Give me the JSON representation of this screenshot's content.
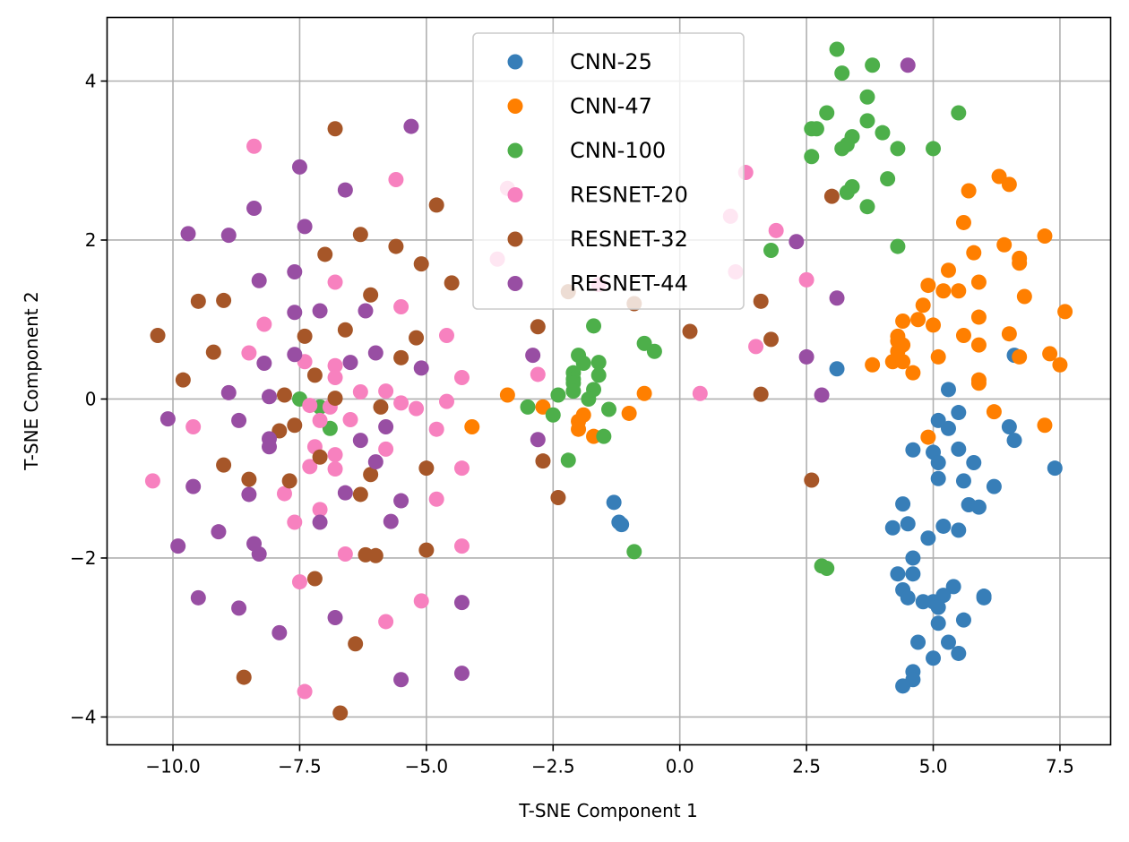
{
  "chart_data": {
    "type": "scatter",
    "xlabel": "T-SNE Component 1",
    "ylabel": "T-SNE Component 2",
    "xlim": [
      -11.3,
      8.5
    ],
    "ylim": [
      -4.35,
      4.8
    ],
    "x_ticks": [
      -10.0,
      -7.5,
      -5.0,
      -2.5,
      0.0,
      2.5,
      5.0,
      7.5
    ],
    "x_tick_labels": [
      "−10.0",
      "−7.5",
      "−5.0",
      "−2.5",
      "0.0",
      "2.5",
      "5.0",
      "7.5"
    ],
    "y_ticks": [
      -4,
      -2,
      0,
      2,
      4
    ],
    "y_tick_labels": [
      "−4",
      "−2",
      "0",
      "2",
      "4"
    ],
    "grid": true,
    "legend_position": "upper-center",
    "series": [
      {
        "name": "CNN-25",
        "color": "#377eb8",
        "points": [
          [
            6.6,
            0.55
          ],
          [
            3.1,
            0.38
          ],
          [
            5.3,
            0.12
          ],
          [
            5.5,
            -0.17
          ],
          [
            5.1,
            -0.27
          ],
          [
            5.3,
            -0.37
          ],
          [
            6.5,
            -0.35
          ],
          [
            6.6,
            -0.52
          ],
          [
            5.0,
            -0.67
          ],
          [
            5.5,
            -0.63
          ],
          [
            4.6,
            -0.64
          ],
          [
            5.1,
            -0.8
          ],
          [
            5.8,
            -0.8
          ],
          [
            7.4,
            -0.87
          ],
          [
            5.1,
            -1.0
          ],
          [
            5.6,
            -1.03
          ],
          [
            6.2,
            -1.1
          ],
          [
            5.7,
            -1.33
          ],
          [
            5.9,
            -1.36
          ],
          [
            4.4,
            -1.32
          ],
          [
            -1.3,
            -1.3
          ],
          [
            -1.2,
            -1.55
          ],
          [
            -1.15,
            -1.58
          ],
          [
            4.5,
            -1.57
          ],
          [
            4.2,
            -1.62
          ],
          [
            5.2,
            -1.6
          ],
          [
            5.5,
            -1.65
          ],
          [
            4.9,
            -1.75
          ],
          [
            4.6,
            -2.0
          ],
          [
            4.3,
            -2.2
          ],
          [
            4.6,
            -2.2
          ],
          [
            5.4,
            -2.36
          ],
          [
            4.4,
            -2.4
          ],
          [
            5.2,
            -2.47
          ],
          [
            6.0,
            -2.48
          ],
          [
            6.0,
            -2.5
          ],
          [
            4.5,
            -2.5
          ],
          [
            4.8,
            -2.55
          ],
          [
            5.0,
            -2.55
          ],
          [
            5.1,
            -2.62
          ],
          [
            5.1,
            -2.82
          ],
          [
            5.6,
            -2.78
          ],
          [
            4.7,
            -3.06
          ],
          [
            5.3,
            -3.06
          ],
          [
            5.0,
            -3.26
          ],
          [
            5.5,
            -3.2
          ],
          [
            4.6,
            -3.43
          ],
          [
            4.6,
            -3.53
          ],
          [
            4.4,
            -3.61
          ]
        ]
      },
      {
        "name": "CNN-47",
        "color": "#ff7f00",
        "points": [
          [
            6.3,
            2.8
          ],
          [
            6.5,
            2.7
          ],
          [
            5.7,
            2.62
          ],
          [
            5.6,
            2.22
          ],
          [
            7.2,
            2.05
          ],
          [
            6.4,
            1.94
          ],
          [
            5.8,
            1.84
          ],
          [
            6.7,
            1.77
          ],
          [
            6.7,
            1.71
          ],
          [
            5.3,
            1.62
          ],
          [
            5.9,
            1.47
          ],
          [
            4.9,
            1.43
          ],
          [
            5.2,
            1.36
          ],
          [
            5.5,
            1.36
          ],
          [
            6.8,
            1.29
          ],
          [
            4.8,
            1.18
          ],
          [
            7.6,
            1.1
          ],
          [
            5.9,
            1.03
          ],
          [
            4.7,
            1.0
          ],
          [
            4.4,
            0.98
          ],
          [
            5.0,
            0.93
          ],
          [
            6.5,
            0.82
          ],
          [
            5.6,
            0.8
          ],
          [
            4.3,
            0.79
          ],
          [
            4.3,
            0.73
          ],
          [
            5.9,
            0.68
          ],
          [
            4.4,
            0.68
          ],
          [
            4.3,
            0.6
          ],
          [
            6.7,
            0.53
          ],
          [
            5.1,
            0.53
          ],
          [
            4.2,
            0.47
          ],
          [
            4.4,
            0.47
          ],
          [
            3.8,
            0.43
          ],
          [
            7.3,
            0.57
          ],
          [
            7.5,
            0.43
          ],
          [
            4.6,
            0.33
          ],
          [
            5.9,
            0.24
          ],
          [
            5.9,
            0.2
          ],
          [
            -0.7,
            0.07
          ],
          [
            -3.4,
            0.05
          ],
          [
            -2.7,
            -0.1
          ],
          [
            -1.0,
            -0.18
          ],
          [
            -1.9,
            -0.2
          ],
          [
            -2.0,
            -0.28
          ],
          [
            -2.0,
            -0.38
          ],
          [
            -1.7,
            -0.47
          ],
          [
            6.2,
            -0.16
          ],
          [
            7.2,
            -0.33
          ],
          [
            4.9,
            -0.48
          ],
          [
            -4.1,
            -0.35
          ]
        ]
      },
      {
        "name": "CNN-100",
        "color": "#4daf4a",
        "points": [
          [
            3.1,
            4.4
          ],
          [
            3.2,
            4.1
          ],
          [
            3.8,
            4.2
          ],
          [
            3.7,
            3.8
          ],
          [
            2.9,
            3.6
          ],
          [
            5.5,
            3.6
          ],
          [
            3.7,
            3.5
          ],
          [
            2.6,
            3.4
          ],
          [
            2.7,
            3.4
          ],
          [
            4.0,
            3.35
          ],
          [
            3.4,
            3.3
          ],
          [
            3.3,
            3.2
          ],
          [
            3.2,
            3.15
          ],
          [
            4.3,
            3.15
          ],
          [
            5.0,
            3.15
          ],
          [
            2.6,
            3.05
          ],
          [
            3.4,
            2.67
          ],
          [
            3.3,
            2.6
          ],
          [
            4.1,
            2.77
          ],
          [
            3.7,
            2.42
          ],
          [
            4.3,
            1.92
          ],
          [
            1.8,
            1.87
          ],
          [
            -1.7,
            0.92
          ],
          [
            -0.7,
            0.7
          ],
          [
            -0.5,
            0.6
          ],
          [
            -2.0,
            0.55
          ],
          [
            -1.6,
            0.46
          ],
          [
            -1.9,
            0.45
          ],
          [
            -2.1,
            0.33
          ],
          [
            -1.6,
            0.3
          ],
          [
            -2.1,
            0.25
          ],
          [
            -2.1,
            0.2
          ],
          [
            -1.7,
            0.12
          ],
          [
            -2.1,
            0.1
          ],
          [
            -2.4,
            0.05
          ],
          [
            -1.8,
            0.0
          ],
          [
            -3.0,
            -0.1
          ],
          [
            -1.4,
            -0.13
          ],
          [
            -2.5,
            -0.2
          ],
          [
            -7.5,
            0.0
          ],
          [
            -7.1,
            -0.1
          ],
          [
            -6.9,
            -0.37
          ],
          [
            -1.5,
            -0.47
          ],
          [
            -2.2,
            -0.77
          ],
          [
            -0.9,
            -1.92
          ],
          [
            2.8,
            -2.1
          ],
          [
            2.9,
            -2.13
          ]
        ]
      },
      {
        "name": "RESNET-20",
        "color": "#f781bf",
        "points": [
          [
            -8.4,
            3.18
          ],
          [
            -5.6,
            2.76
          ],
          [
            1.3,
            2.85
          ],
          [
            -3.4,
            2.65
          ],
          [
            1.0,
            2.3
          ],
          [
            1.9,
            2.12
          ],
          [
            -3.6,
            1.76
          ],
          [
            1.1,
            1.6
          ],
          [
            -6.8,
            1.47
          ],
          [
            -1.6,
            1.44
          ],
          [
            2.5,
            1.5
          ],
          [
            -5.5,
            1.16
          ],
          [
            -8.2,
            0.94
          ],
          [
            -4.6,
            0.8
          ],
          [
            -8.5,
            0.58
          ],
          [
            1.5,
            0.66
          ],
          [
            -7.4,
            0.47
          ],
          [
            -6.8,
            0.42
          ],
          [
            -2.8,
            0.31
          ],
          [
            -6.8,
            0.27
          ],
          [
            -4.3,
            0.27
          ],
          [
            -6.3,
            0.09
          ],
          [
            -5.8,
            0.1
          ],
          [
            0.4,
            0.07
          ],
          [
            -4.6,
            -0.03
          ],
          [
            -5.5,
            -0.05
          ],
          [
            -7.3,
            -0.08
          ],
          [
            -6.9,
            -0.1
          ],
          [
            -5.2,
            -0.12
          ],
          [
            -6.5,
            -0.26
          ],
          [
            -7.1,
            -0.27
          ],
          [
            -9.6,
            -0.35
          ],
          [
            -4.8,
            -0.38
          ],
          [
            -7.2,
            -0.6
          ],
          [
            -5.8,
            -0.63
          ],
          [
            -6.8,
            -0.7
          ],
          [
            -7.3,
            -0.85
          ],
          [
            -6.8,
            -0.88
          ],
          [
            -4.3,
            -0.87
          ],
          [
            -10.4,
            -1.03
          ],
          [
            -7.8,
            -1.19
          ],
          [
            -4.8,
            -1.26
          ],
          [
            -7.1,
            -1.39
          ],
          [
            -7.6,
            -1.55
          ],
          [
            -4.3,
            -1.85
          ],
          [
            -6.6,
            -1.95
          ],
          [
            -7.5,
            -2.3
          ],
          [
            -5.1,
            -2.54
          ],
          [
            -5.8,
            -2.8
          ],
          [
            -7.4,
            -3.68
          ]
        ]
      },
      {
        "name": "RESNET-32",
        "color": "#a65628",
        "points": [
          [
            -6.8,
            3.4
          ],
          [
            -4.8,
            2.44
          ],
          [
            -6.3,
            2.07
          ],
          [
            -5.6,
            1.92
          ],
          [
            -7.0,
            1.82
          ],
          [
            3.0,
            2.55
          ],
          [
            -5.1,
            1.7
          ],
          [
            -4.5,
            1.46
          ],
          [
            -9.5,
            1.23
          ],
          [
            -9.0,
            1.24
          ],
          [
            -2.2,
            1.35
          ],
          [
            -6.1,
            1.31
          ],
          [
            1.6,
            1.23
          ],
          [
            -0.9,
            1.2
          ],
          [
            -2.8,
            0.91
          ],
          [
            -6.6,
            0.87
          ],
          [
            0.2,
            0.85
          ],
          [
            -10.3,
            0.8
          ],
          [
            -7.4,
            0.79
          ],
          [
            -5.2,
            0.77
          ],
          [
            1.8,
            0.75
          ],
          [
            -9.2,
            0.59
          ],
          [
            -5.5,
            0.52
          ],
          [
            -7.2,
            0.3
          ],
          [
            -9.8,
            0.24
          ],
          [
            -7.8,
            0.05
          ],
          [
            -6.8,
            0.01
          ],
          [
            1.6,
            0.06
          ],
          [
            -5.9,
            -0.1
          ],
          [
            -7.6,
            -0.33
          ],
          [
            -7.9,
            -0.4
          ],
          [
            -7.1,
            -0.73
          ],
          [
            -9.0,
            -0.83
          ],
          [
            -5.0,
            -0.87
          ],
          [
            -2.7,
            -0.78
          ],
          [
            -6.1,
            -0.95
          ],
          [
            -8.5,
            -1.01
          ],
          [
            -7.7,
            -1.03
          ],
          [
            2.6,
            -1.02
          ],
          [
            -6.3,
            -1.2
          ],
          [
            -2.4,
            -1.24
          ],
          [
            -5.0,
            -1.9
          ],
          [
            -6.2,
            -1.96
          ],
          [
            -6.0,
            -1.97
          ],
          [
            -7.2,
            -2.26
          ],
          [
            -6.4,
            -3.08
          ],
          [
            -8.6,
            -3.5
          ],
          [
            -6.7,
            -3.95
          ]
        ]
      },
      {
        "name": "RESNET-44",
        "color": "#984ea3",
        "points": [
          [
            4.5,
            4.2
          ],
          [
            -5.3,
            3.43
          ],
          [
            -7.5,
            2.92
          ],
          [
            -6.6,
            2.63
          ],
          [
            -8.4,
            2.4
          ],
          [
            -7.4,
            2.17
          ],
          [
            -9.7,
            2.08
          ],
          [
            -8.9,
            2.06
          ],
          [
            2.3,
            1.98
          ],
          [
            -7.6,
            1.6
          ],
          [
            -8.3,
            1.49
          ],
          [
            3.1,
            1.27
          ],
          [
            -7.1,
            1.11
          ],
          [
            -7.6,
            1.09
          ],
          [
            -6.2,
            1.11
          ],
          [
            -6.0,
            0.58
          ],
          [
            -7.6,
            0.56
          ],
          [
            -2.9,
            0.55
          ],
          [
            2.5,
            0.53
          ],
          [
            -8.2,
            0.45
          ],
          [
            -6.5,
            0.46
          ],
          [
            -5.1,
            0.39
          ],
          [
            -8.9,
            0.08
          ],
          [
            -8.1,
            0.03
          ],
          [
            2.8,
            0.05
          ],
          [
            -5.8,
            -0.35
          ],
          [
            -10.1,
            -0.25
          ],
          [
            -8.7,
            -0.27
          ],
          [
            -2.8,
            -0.51
          ],
          [
            -6.3,
            -0.52
          ],
          [
            -8.1,
            -0.5
          ],
          [
            -8.1,
            -0.6
          ],
          [
            -6.0,
            -0.79
          ],
          [
            -9.6,
            -1.1
          ],
          [
            -8.5,
            -1.2
          ],
          [
            -6.6,
            -1.18
          ],
          [
            -5.5,
            -1.28
          ],
          [
            -5.7,
            -1.54
          ],
          [
            -7.1,
            -1.55
          ],
          [
            -9.1,
            -1.67
          ],
          [
            -8.4,
            -1.82
          ],
          [
            -9.9,
            -1.85
          ],
          [
            -8.3,
            -1.95
          ],
          [
            -9.5,
            -2.5
          ],
          [
            -4.3,
            -2.56
          ],
          [
            -8.7,
            -2.63
          ],
          [
            -6.8,
            -2.75
          ],
          [
            -7.9,
            -2.94
          ],
          [
            -4.3,
            -3.45
          ],
          [
            -5.5,
            -3.53
          ]
        ]
      }
    ]
  }
}
